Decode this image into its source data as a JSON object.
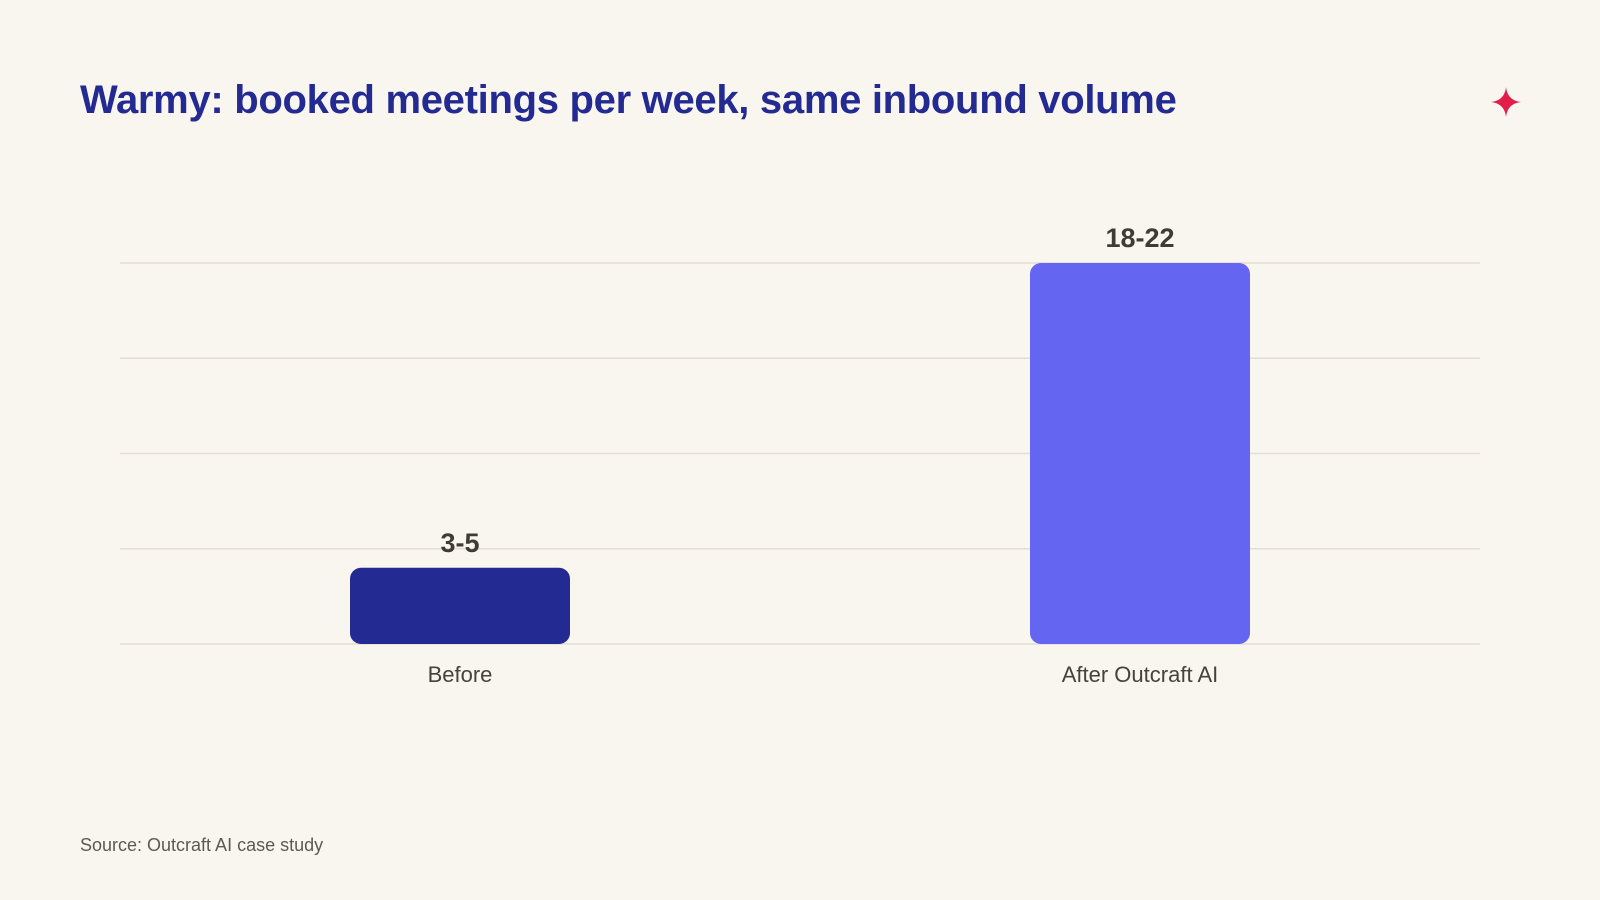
{
  "brand": {
    "icon": "sparkle-icon",
    "color": "#e11d48"
  },
  "chart_data": {
    "type": "bar",
    "title": "Warmy: booked meetings per week, same inbound volume",
    "categories": [
      "Before",
      "After Outcraft AI"
    ],
    "series": [
      {
        "values": [
          [
            3,
            5
          ],
          [
            18,
            22
          ]
        ],
        "labels": [
          "3-5",
          "18-22"
        ],
        "colors": [
          "#232a91",
          "#6466f1"
        ]
      }
    ],
    "xlabel": "",
    "ylabel": "",
    "grid": true,
    "legend": "none"
  },
  "footer": {
    "source": "Source: Outcraft AI case study"
  }
}
